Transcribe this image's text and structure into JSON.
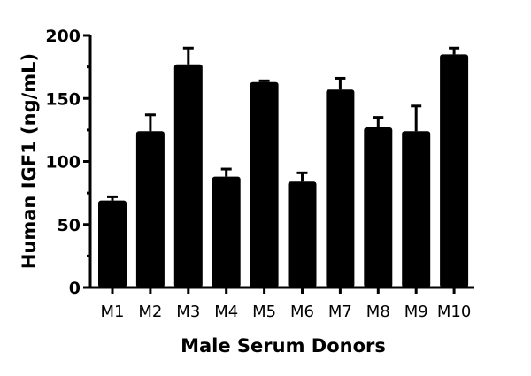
{
  "chart_data": {
    "type": "bar",
    "title": "",
    "xlabel": "Male Serum Donors",
    "ylabel": "Human IGF1 (ng/mL)",
    "ylim": [
      0,
      200
    ],
    "yticks": [
      0,
      50,
      100,
      150,
      200
    ],
    "grid": false,
    "legend": null,
    "categories": [
      "M1",
      "M2",
      "M3",
      "M4",
      "M5",
      "M6",
      "M7",
      "M8",
      "M9",
      "M10"
    ],
    "values": [
      69,
      124,
      177,
      88,
      163,
      84,
      157,
      127,
      124,
      185
    ],
    "error_upper": [
      72,
      137,
      190,
      94,
      164,
      91,
      166,
      135,
      144,
      190
    ],
    "bar_color": "#000000"
  }
}
